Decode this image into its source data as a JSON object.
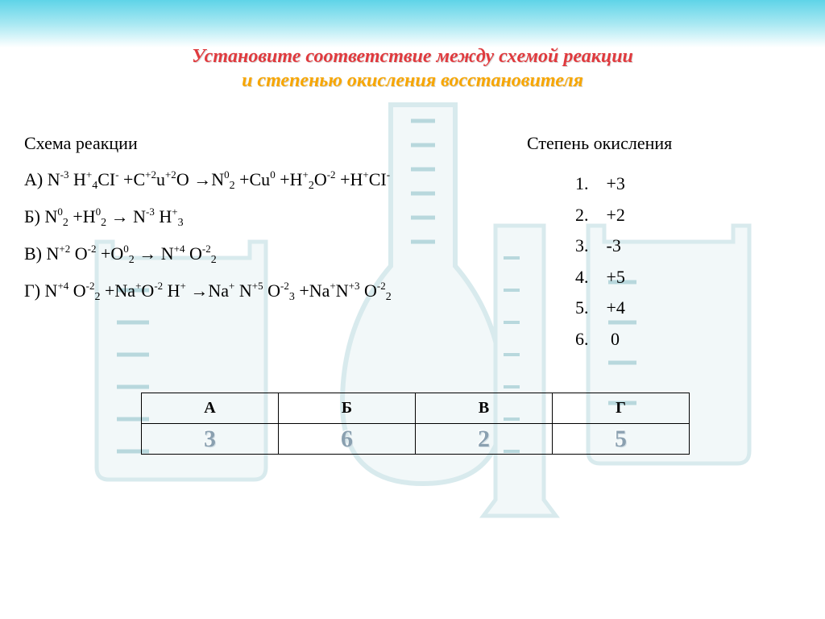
{
  "title_line1": "Установите соответствие между схемой реакции",
  "title_line2": "и степенью окисления восстановителя",
  "left_heading": "Схема реакции",
  "right_heading": "Степень окисления",
  "reactions": {
    "a": {
      "letter": "А)",
      "html": "N<span class='sup'>-3</span> H<span class='sup'>+</span><span class='sub'>4</span>CI<span class='sup'>-</span> +C<span class='sup'>+2</span>u<span class='sup'>+2</span>O →N<span class='sup'>0</span><span class='sub'>2</span> +Cu<span class='sup'>0</span> +H<span class='sup'>+</span><span class='sub'>2</span>O<span class='sup'>-2</span> +H<span class='sup'>+</span>CI<span class='sup'>-</span>"
    },
    "b": {
      "letter": "Б)",
      "html": "N<span class='sup'>0</span><span class='sub'>2</span> +H<span class='sup'>0</span><span class='sub'>2</span> → N<span class='sup'>-3</span> H<span class='sup'>+</span><span class='sub'>3</span>"
    },
    "c": {
      "letter": "В)",
      "html": "N<span class='sup'>+2</span> O<span class='sup'>-2</span> +O<span class='sup'>0</span><span class='sub'>2</span> → N<span class='sup'>+4</span> O<span class='sup'>-2</span><span class='sub'>2</span>"
    },
    "d": {
      "letter": "Г)",
      "html": "N<span class='sup'>+4</span> O<span class='sup'>-2</span><span class='sub'>2</span> +Na<span class='sup'>+</span>O<span class='sup'>-2</span> H<span class='sup'>+</span> →Na<span class='sup'>+</span> N<span class='sup'>+5</span> O<span class='sup'>-2</span><span class='sub'>3</span> +Na<span class='sup'>+</span>N<span class='sup'>+3</span> O<span class='sup'>-2</span><span class='sub'>2</span>"
    }
  },
  "oxidation_options": [
    {
      "n": "1.",
      "v": "+3"
    },
    {
      "n": "2.",
      "v": "+2"
    },
    {
      "n": "3.",
      "v": "-3"
    },
    {
      "n": "4.",
      "v": "+5"
    },
    {
      "n": "5.",
      "v": "+4"
    },
    {
      "n": "6.",
      "v": "0"
    }
  ],
  "table": {
    "headers": [
      "А",
      "Б",
      "В",
      "Г"
    ],
    "answers": [
      "3",
      "6",
      "2",
      "5"
    ]
  },
  "colors": {
    "glass_stroke": "#b9d9df",
    "glass_fill": "#e8f3f5",
    "tickmark": "#7fb9c2"
  }
}
